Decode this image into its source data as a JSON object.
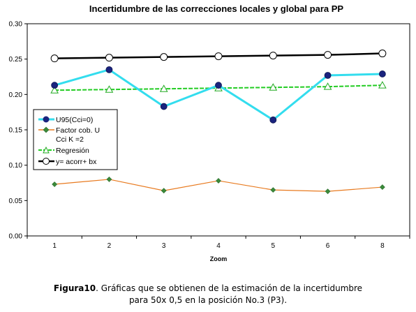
{
  "chart_data": {
    "type": "line",
    "title": "Incertidumbre de las correcciones locales y global para PP",
    "xlabel": "Zoom",
    "ylabel": "",
    "categories": [
      "1",
      "2",
      "3",
      "4",
      "5",
      "6",
      "8"
    ],
    "ylim": [
      0,
      0.3
    ],
    "yticks": [
      "0.00",
      "0.05",
      "0.10",
      "0.15",
      "0.20",
      "0.25",
      "0.30"
    ],
    "grid": false,
    "legend_position": "left",
    "series": [
      {
        "name": "U95(Cci=0)",
        "color": "#33ddee",
        "marker": "filled-circle-navy",
        "values": [
          0.213,
          0.235,
          0.183,
          0.213,
          0.164,
          0.227,
          0.229
        ]
      },
      {
        "name_lines": [
          "Factor cob. U",
          "Cci K =2"
        ],
        "color": "#e87a1f",
        "marker": "green-diamond",
        "values": [
          0.073,
          0.08,
          0.064,
          0.078,
          0.065,
          0.063,
          0.069
        ]
      },
      {
        "name": "Regresión",
        "color": "#22cc22",
        "marker": "open-triangle",
        "values": [
          0.206,
          0.207,
          0.208,
          0.209,
          0.21,
          0.211,
          0.213
        ]
      },
      {
        "name": "y= acorr+ bx",
        "color": "#000000",
        "marker": "open-circle",
        "values": [
          0.251,
          0.252,
          0.253,
          0.254,
          0.255,
          0.256,
          0.258
        ]
      }
    ]
  },
  "caption": {
    "label": "Figura10",
    "text": ". Gráficas que se obtienen de la estimación de la incertidumbre",
    "line2": "para 50x 0,5 en la posición No.3 (P3)."
  }
}
